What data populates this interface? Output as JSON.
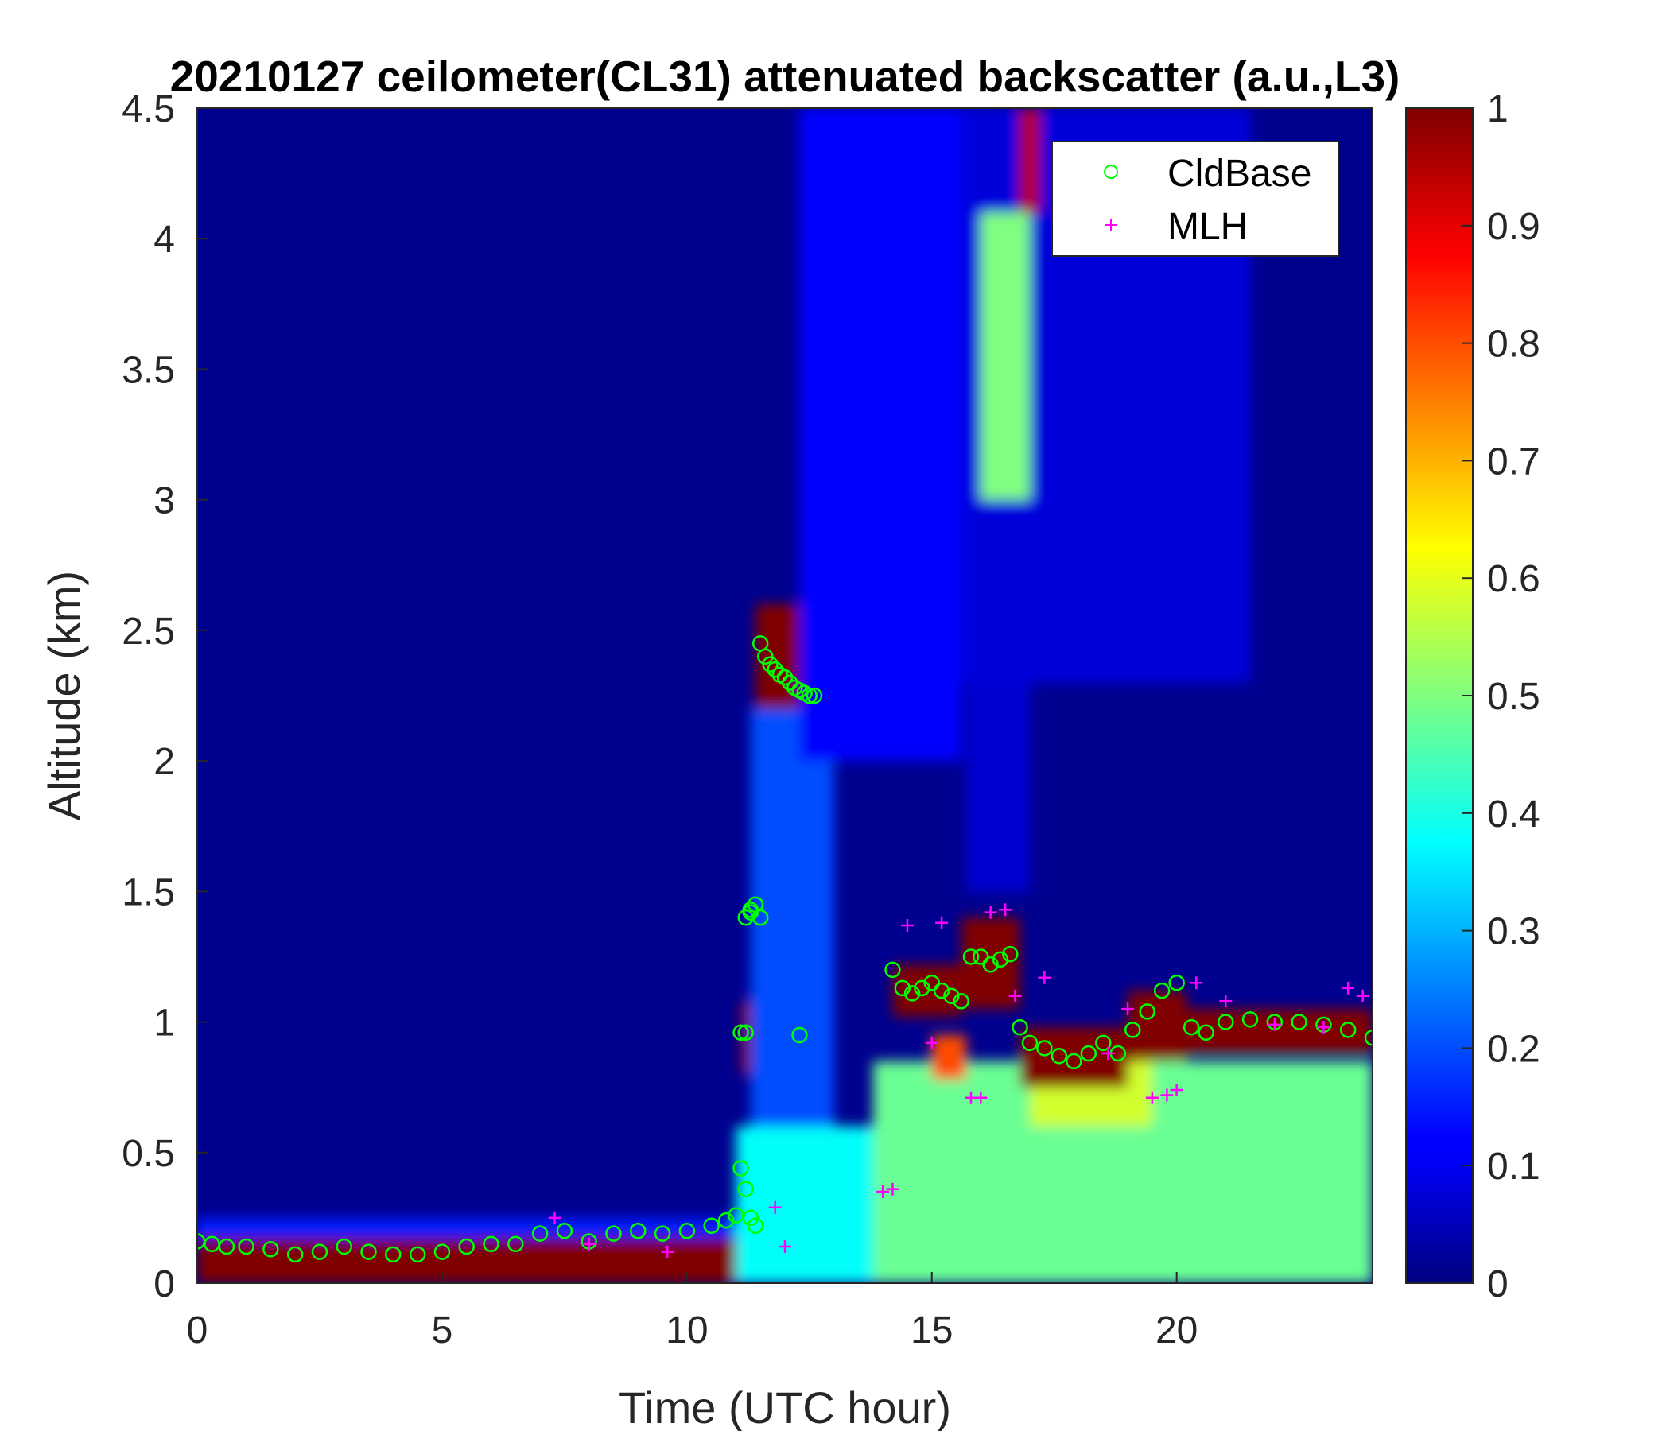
{
  "title": "20210127 ceilometer(CL31) attenuated backscatter (a.u.,L3)",
  "chart_data": {
    "type": "heatmap",
    "title": "20210127 ceilometer(CL31) attenuated backscatter (a.u.,L3)",
    "xlabel": "Time (UTC hour)",
    "ylabel": "Altitude (km)",
    "xlim": [
      0,
      24
    ],
    "ylim": [
      0,
      4.5
    ],
    "x_ticks": [
      "0",
      "5",
      "10",
      "15",
      "20"
    ],
    "x_tick_values": [
      0,
      5,
      10,
      15,
      20
    ],
    "y_ticks": [
      "0",
      "0.5",
      "1",
      "1.5",
      "2",
      "2.5",
      "3",
      "3.5",
      "4",
      "4.5"
    ],
    "y_tick_values": [
      0,
      0.5,
      1,
      1.5,
      2,
      2.5,
      3,
      3.5,
      4,
      4.5
    ],
    "colorbar": {
      "colormap": "jet",
      "range": [
        0,
        1
      ],
      "ticks": [
        "0",
        "0.1",
        "0.2",
        "0.3",
        "0.4",
        "0.5",
        "0.6",
        "0.7",
        "0.8",
        "0.9",
        "1"
      ],
      "tick_values": [
        0,
        0.1,
        0.2,
        0.3,
        0.4,
        0.5,
        0.6,
        0.7,
        0.8,
        0.9,
        1
      ]
    },
    "legend": {
      "placement": "top-right",
      "entries": [
        {
          "label": "CldBase",
          "marker": "circle",
          "color": "#00ff00"
        },
        {
          "label": "MLH",
          "marker": "plus",
          "color": "#ff00ff"
        }
      ]
    },
    "background_value": 0.02,
    "regions": [
      {
        "x0": 0,
        "x1": 12.7,
        "y0": 0,
        "y1": 0.17,
        "value": 1.0
      },
      {
        "x0": 0,
        "x1": 12.5,
        "y0": 0.17,
        "y1": 0.25,
        "value": 0.15
      },
      {
        "x0": 11.4,
        "x1": 12.6,
        "y0": 2.15,
        "y1": 2.6,
        "value": 1.0
      },
      {
        "x0": 11.3,
        "x1": 11.6,
        "y0": 1.23,
        "y1": 1.55,
        "value": 1.0
      },
      {
        "x0": 11.1,
        "x1": 11.4,
        "y0": 0.8,
        "y1": 1.08,
        "value": 1.0
      },
      {
        "x0": 11.0,
        "x1": 14.0,
        "y0": 0,
        "y1": 0.6,
        "value": 0.38
      },
      {
        "x0": 11.3,
        "x1": 13.0,
        "y0": 0.6,
        "y1": 2.2,
        "value": 0.2
      },
      {
        "x0": 12.3,
        "x1": 15.6,
        "y0": 2.0,
        "y1": 4.5,
        "value": 0.13
      },
      {
        "x0": 15.6,
        "x1": 21.5,
        "y0": 2.3,
        "y1": 4.5,
        "value": 0.09
      },
      {
        "x0": 16.0,
        "x1": 17.0,
        "y0": 3.0,
        "y1": 4.1,
        "value": 0.5
      },
      {
        "x0": 16.8,
        "x1": 17.2,
        "y0": 4.1,
        "y1": 4.5,
        "value": 0.95
      },
      {
        "x0": 15.7,
        "x1": 17.0,
        "y0": 1.5,
        "y1": 2.3,
        "value": 0.08
      },
      {
        "x0": 13.8,
        "x1": 24,
        "y0": 0,
        "y1": 0.85,
        "value": 0.48
      },
      {
        "x0": 17.0,
        "x1": 19.5,
        "y0": 0.6,
        "y1": 0.85,
        "value": 0.58
      },
      {
        "x0": 14.2,
        "x1": 15.6,
        "y0": 1.02,
        "y1": 1.22,
        "value": 1.0
      },
      {
        "x0": 15.6,
        "x1": 16.8,
        "y0": 1.05,
        "y1": 1.4,
        "value": 1.0
      },
      {
        "x0": 15.0,
        "x1": 15.7,
        "y0": 0.78,
        "y1": 0.95,
        "value": 0.8
      },
      {
        "x0": 16.8,
        "x1": 19.0,
        "y0": 0.75,
        "y1": 0.98,
        "value": 1.0
      },
      {
        "x0": 19.0,
        "x1": 20.2,
        "y0": 0.85,
        "y1": 1.12,
        "value": 1.0
      },
      {
        "x0": 20.2,
        "x1": 24,
        "y0": 0.88,
        "y1": 1.05,
        "value": 1.0
      }
    ],
    "series": [
      {
        "name": "CldBase",
        "marker": "circle",
        "x": [
          0,
          0.3,
          0.6,
          1,
          1.5,
          2,
          2.5,
          3,
          3.5,
          4,
          4.5,
          5,
          5.5,
          6,
          6.5,
          7,
          7.5,
          8,
          8.5,
          9,
          9.5,
          10,
          10.5,
          10.8,
          11.0,
          11.1,
          11.2,
          11.3,
          11.4,
          11.5,
          11.6,
          11.7,
          11.8,
          11.9,
          12.0,
          12.1,
          12.2,
          12.3,
          12.4,
          12.5,
          12.6,
          12.3,
          11.1,
          11.2,
          11.3,
          11.4,
          11.5,
          11.2,
          11.3,
          14.2,
          14.4,
          14.6,
          14.8,
          15.0,
          15.2,
          15.4,
          15.6,
          15.8,
          16.0,
          16.2,
          16.4,
          16.6,
          16.8,
          17.0,
          17.3,
          17.6,
          17.9,
          18.2,
          18.5,
          18.8,
          19.1,
          19.4,
          19.7,
          20.0,
          20.3,
          20.6,
          21.0,
          21.5,
          22.0,
          22.5,
          23.0,
          23.5,
          24.0
        ],
        "y": [
          0.16,
          0.15,
          0.14,
          0.14,
          0.13,
          0.11,
          0.12,
          0.14,
          0.12,
          0.11,
          0.11,
          0.12,
          0.14,
          0.15,
          0.15,
          0.19,
          0.2,
          0.16,
          0.19,
          0.2,
          0.19,
          0.2,
          0.22,
          0.24,
          0.26,
          0.44,
          0.36,
          0.25,
          0.22,
          2.45,
          2.4,
          2.37,
          2.35,
          2.33,
          2.32,
          2.3,
          2.28,
          2.27,
          2.26,
          2.25,
          2.25,
          0.95,
          0.96,
          0.96,
          1.42,
          1.45,
          1.4,
          1.4,
          1.43,
          1.2,
          1.13,
          1.11,
          1.13,
          1.15,
          1.12,
          1.1,
          1.08,
          1.25,
          1.25,
          1.22,
          1.24,
          1.26,
          0.98,
          0.92,
          0.9,
          0.87,
          0.85,
          0.88,
          0.92,
          0.88,
          0.97,
          1.04,
          1.12,
          1.15,
          0.98,
          0.96,
          1.0,
          1.01,
          1.0,
          1.0,
          0.99,
          0.97,
          0.94
        ]
      },
      {
        "name": "MLH",
        "marker": "plus",
        "x": [
          7.3,
          8.0,
          9.6,
          11.8,
          12.0,
          14.0,
          14.2,
          15.2,
          15.8,
          16.0,
          16.2,
          16.5,
          17.3,
          18.6,
          19.0,
          19.5,
          19.8,
          20.0,
          20.4,
          21.0,
          22.0,
          23.0,
          23.5,
          23.8,
          15.0,
          14.5,
          16.7
        ],
        "y": [
          0.25,
          0.15,
          0.12,
          0.29,
          0.14,
          0.35,
          0.36,
          1.38,
          0.71,
          0.71,
          1.42,
          1.43,
          1.17,
          0.88,
          1.05,
          0.71,
          0.72,
          0.74,
          1.15,
          1.08,
          0.99,
          0.98,
          1.13,
          1.1,
          0.92,
          1.37,
          1.1
        ]
      }
    ]
  }
}
